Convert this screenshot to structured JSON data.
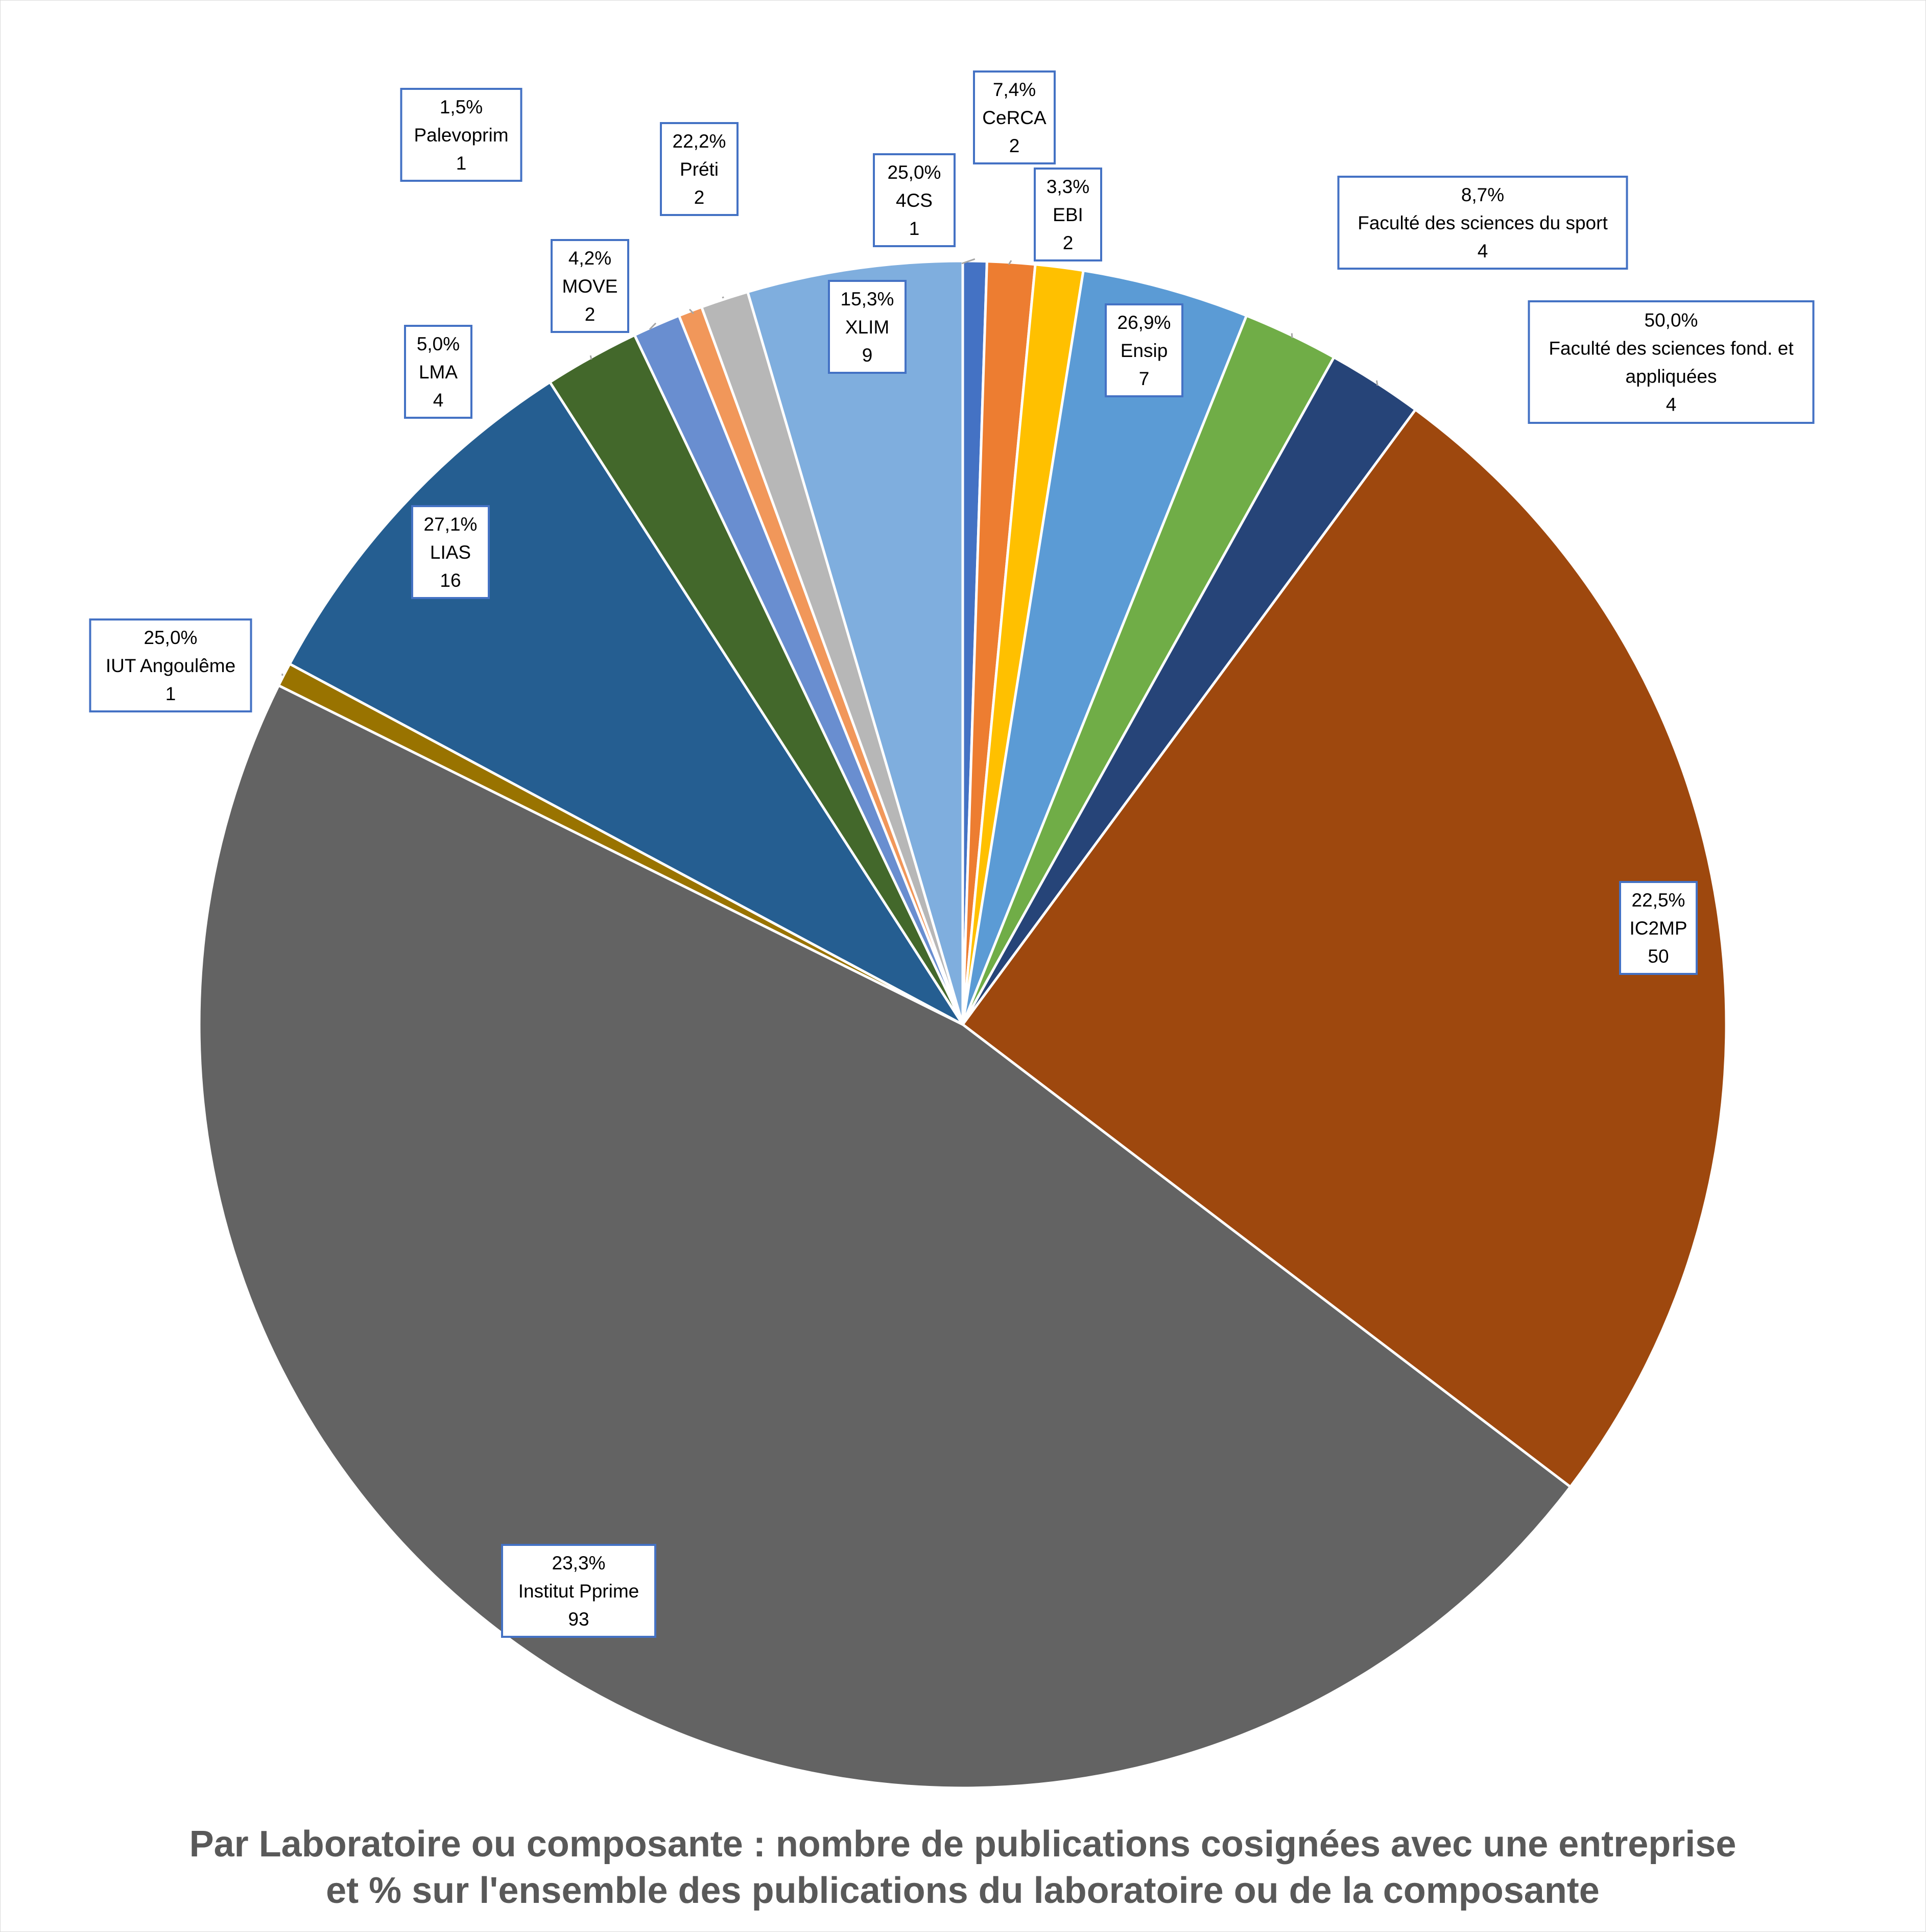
{
  "chart_data": {
    "type": "pie",
    "title_lines": [
      "Par Laboratoire ou composante : nombre de publications cosignées avec une entreprise",
      "et % sur l'ensemble des publications du laboratoire ou de la composante"
    ],
    "start_angle_deg": 0,
    "direction": "clockwise",
    "slices": [
      {
        "name": "4CS",
        "value": 1,
        "percent": "25,0%",
        "color": "#4472C4"
      },
      {
        "name": "CeRCA",
        "value": 2,
        "percent": "7,4%",
        "color": "#ED7D31"
      },
      {
        "name": "EBI",
        "value": 2,
        "percent": "3,3%",
        "color": "#FFC000"
      },
      {
        "name": "Ensip",
        "value": 7,
        "percent": "26,9%",
        "color": "#5B9BD5"
      },
      {
        "name": "Faculté des sciences du sport",
        "value": 4,
        "percent": "8,7%",
        "color": "#70AD47"
      },
      {
        "name": "Faculté des sciences fond. et appliquées",
        "value": 4,
        "percent": "50,0%",
        "color": "#264478"
      },
      {
        "name": "IC2MP",
        "value": 50,
        "percent": "22,5%",
        "color": "#9E480E"
      },
      {
        "name": "Institut Pprime",
        "value": 93,
        "percent": "23,3%",
        "color": "#636363"
      },
      {
        "name": "IUT Angoulême",
        "value": 1,
        "percent": "25,0%",
        "color": "#997300"
      },
      {
        "name": "LIAS",
        "value": 16,
        "percent": "27,1%",
        "color": "#255E91"
      },
      {
        "name": "LMA",
        "value": 4,
        "percent": "5,0%",
        "color": "#43682B"
      },
      {
        "name": "MOVE",
        "value": 2,
        "percent": "4,2%",
        "color": "#698ED0"
      },
      {
        "name": "Palevoprim",
        "value": 1,
        "percent": "1,5%",
        "color": "#F1975A"
      },
      {
        "name": "Préti",
        "value": 2,
        "percent": "22,2%",
        "color": "#B7B7B7"
      },
      {
        "name": "XLIM",
        "value": 9,
        "percent": "15,3%",
        "color": "#7FAEDE"
      }
    ],
    "label_style": {
      "box_border": "#4472C4",
      "leader_line": "#A6A6A6",
      "title_color": "#595959"
    }
  }
}
